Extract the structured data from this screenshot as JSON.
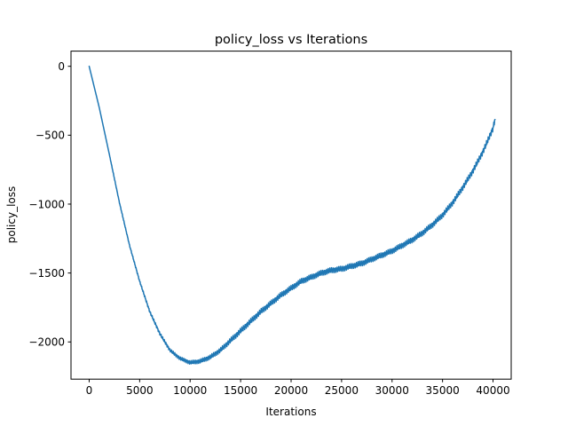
{
  "chart_data": {
    "type": "line",
    "title": "policy_loss vs Iterations",
    "xlabel": "Iterations",
    "ylabel": "policy_loss",
    "xlim": [
      -1800,
      41800
    ],
    "ylim": [
      -2270,
      110
    ],
    "xticks": [
      0,
      5000,
      10000,
      15000,
      20000,
      25000,
      30000,
      35000,
      40000
    ],
    "yticks": [
      0,
      -500,
      -1000,
      -1500,
      -2000
    ],
    "xtick_labels": [
      "0",
      "5000",
      "10000",
      "15000",
      "20000",
      "25000",
      "30000",
      "35000",
      "40000"
    ],
    "ytick_labels": [
      "0",
      "−500",
      "−1000",
      "−1500",
      "−2000"
    ],
    "grid": false,
    "series": [
      {
        "color": "#1f77b4",
        "x": [
          0,
          500,
          1000,
          2000,
          3000,
          4000,
          5000,
          6000,
          7000,
          8000,
          9000,
          10000,
          11000,
          12000,
          13000,
          14000,
          15000,
          16000,
          17000,
          18000,
          19000,
          20000,
          21000,
          22000,
          23000,
          24000,
          25000,
          26000,
          27000,
          28000,
          29000,
          30000,
          31000,
          32000,
          33000,
          34000,
          35000,
          36000,
          37000,
          38000,
          39000,
          40000,
          40200
        ],
        "y": [
          0,
          -150,
          -300,
          -640,
          -990,
          -1300,
          -1560,
          -1780,
          -1940,
          -2060,
          -2120,
          -2150,
          -2140,
          -2110,
          -2060,
          -1990,
          -1920,
          -1850,
          -1780,
          -1720,
          -1660,
          -1610,
          -1560,
          -1530,
          -1500,
          -1480,
          -1470,
          -1450,
          -1430,
          -1400,
          -1370,
          -1340,
          -1300,
          -1260,
          -1210,
          -1150,
          -1080,
          -990,
          -880,
          -760,
          -620,
          -450,
          -380
        ]
      }
    ]
  }
}
